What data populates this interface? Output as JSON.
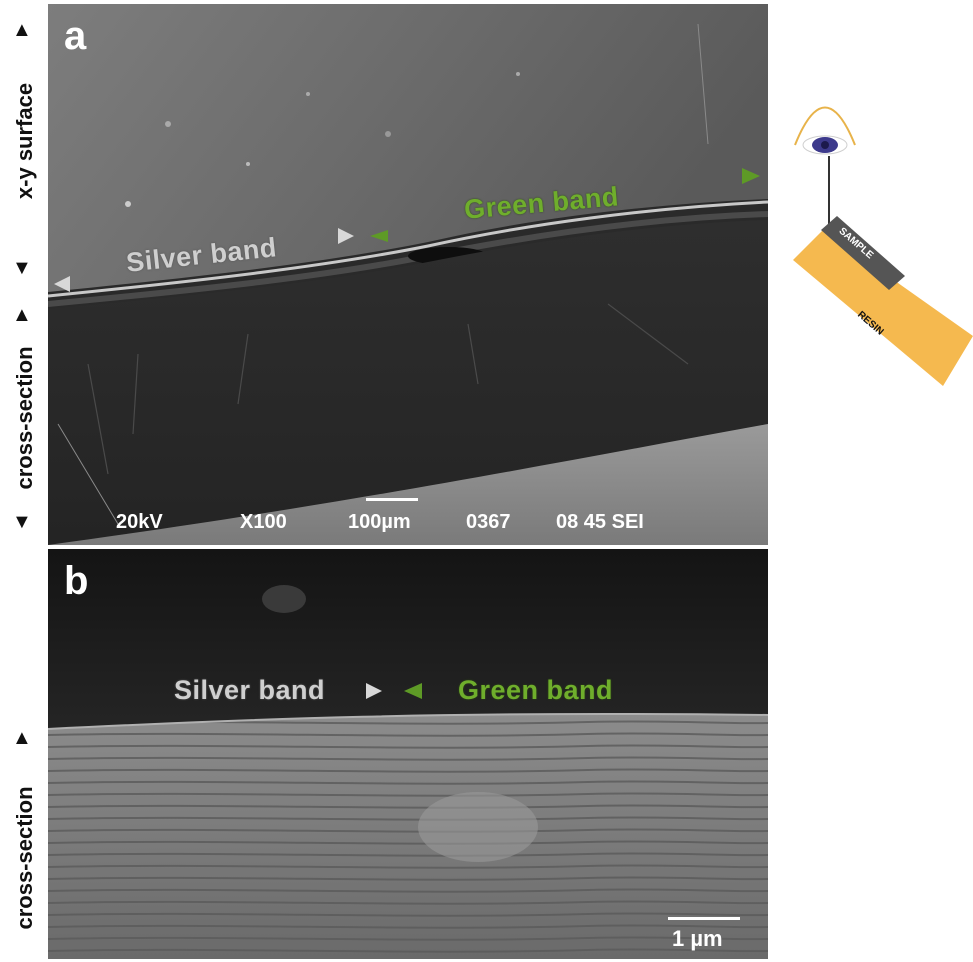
{
  "panel_a": {
    "letter": "a",
    "silver_label": "Silver band",
    "green_label": "Green band",
    "sem_info": {
      "voltage": "20kV",
      "magnification": "X100",
      "scale": "100µm",
      "image_no": "0367",
      "detector": "08 45 SEI"
    },
    "side_label_top": "x-y surface",
    "side_label_bottom": "cross-section"
  },
  "panel_b": {
    "letter": "b",
    "silver_label": "Silver band",
    "green_label": "Green band",
    "scale": "1 µm",
    "side_label": "cross-section"
  },
  "schematic": {
    "sample_label": "SAMPLE",
    "resin_label": "RESIN",
    "colors": {
      "resin": "#f5b94f",
      "sample": "#555555",
      "eye": "#3d3a8c"
    }
  },
  "colors": {
    "silver_marker": "#d8d8d8",
    "green_marker": "#5e9a26"
  }
}
